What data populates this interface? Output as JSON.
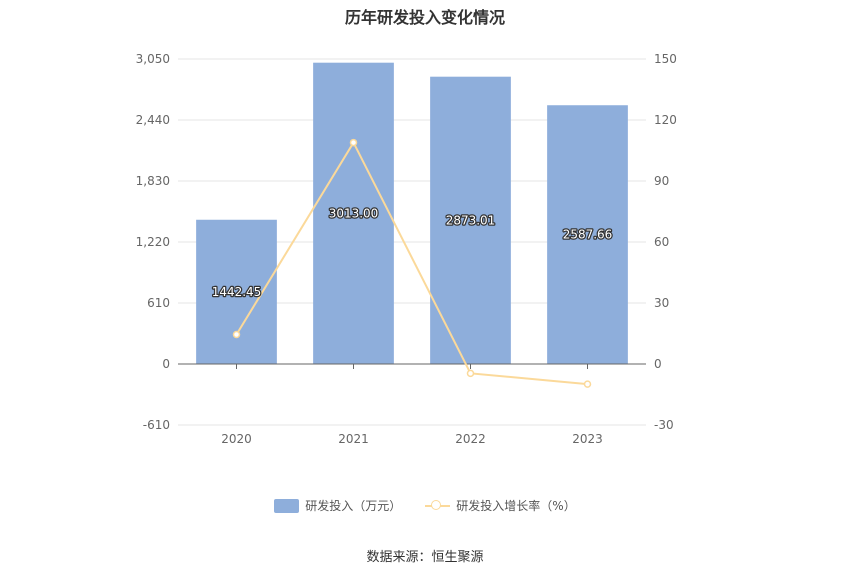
{
  "chart_data": {
    "type": "bar",
    "title": "历年研发投入变化情况",
    "categories": [
      "2020",
      "2021",
      "2022",
      "2023"
    ],
    "series": [
      {
        "name": "研发投入（万元）",
        "type": "bar",
        "axis": "left",
        "values": [
          1442.45,
          3013.0,
          2873.01,
          2587.66
        ],
        "labels": [
          "1442.45",
          "3013.00",
          "2873.01",
          "2587.66"
        ],
        "color": "#8eaedb"
      },
      {
        "name": "研发投入增长率（%）",
        "type": "line",
        "axis": "right",
        "values": [
          14.5,
          108.9,
          -4.6,
          -9.9
        ],
        "color": "#fbd99a"
      }
    ],
    "left_axis": {
      "ylim": [
        -610,
        3050
      ],
      "ticks": [
        3050,
        2440,
        1830,
        1220,
        610,
        0,
        -610
      ],
      "tick_labels": [
        "3,050",
        "2,440",
        "1,830",
        "1,220",
        "610",
        "0",
        "-610"
      ]
    },
    "right_axis": {
      "ylim": [
        -30,
        150
      ],
      "ticks": [
        150,
        120,
        90,
        60,
        30,
        0,
        -30
      ],
      "tick_labels": [
        "150",
        "120",
        "90",
        "60",
        "30",
        "0",
        "-30"
      ]
    },
    "grid": true,
    "legend_position": "bottom",
    "source": "数据来源：恒生聚源"
  }
}
